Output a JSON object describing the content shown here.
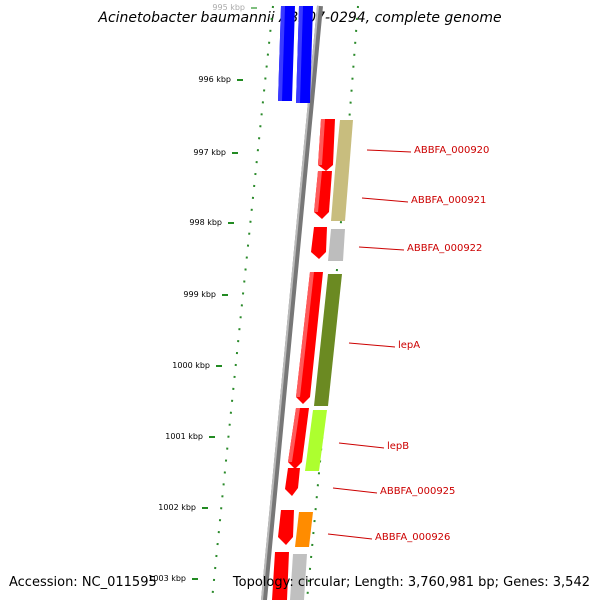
{
  "title": "Acinetobacter baumannii AB307-0294, complete genome",
  "footer": {
    "accession": "Accession: NC_011595",
    "stats": "Topology: circular; Length: 3,760,981 bp; Genes: 3,542"
  },
  "ruler": {
    "ticks": [
      {
        "label": "995 kbp",
        "faded": true
      },
      {
        "label": "996 kbp"
      },
      {
        "label": "997 kbp"
      },
      {
        "label": "998 kbp"
      },
      {
        "label": "999 kbp"
      },
      {
        "label": "1000 kbp"
      },
      {
        "label": "1001 kbp"
      },
      {
        "label": "1002 kbp"
      },
      {
        "label": "1003 kbp"
      }
    ]
  },
  "genes": [
    {
      "label": "ABBFA_000920",
      "color": "#c8bd7e"
    },
    {
      "label": "ABBFA_000921",
      "color": "#c8bd7e"
    },
    {
      "label": "ABBFA_000922",
      "color": "#bdbdbd"
    },
    {
      "label": "lepA",
      "color": "#6b8a22"
    },
    {
      "label": "lepB",
      "color": "#adff2f"
    },
    {
      "label": "ABBFA_000925",
      "color": "#ff0000"
    },
    {
      "label": "ABBFA_000926",
      "color": "#ff8c00"
    }
  ],
  "colors": {
    "cds": "#ff0000",
    "upstream_feature": "#0000ff",
    "backbone": "#808080",
    "tick_marks": "#228b22",
    "gene_labels": "#cc0000"
  }
}
